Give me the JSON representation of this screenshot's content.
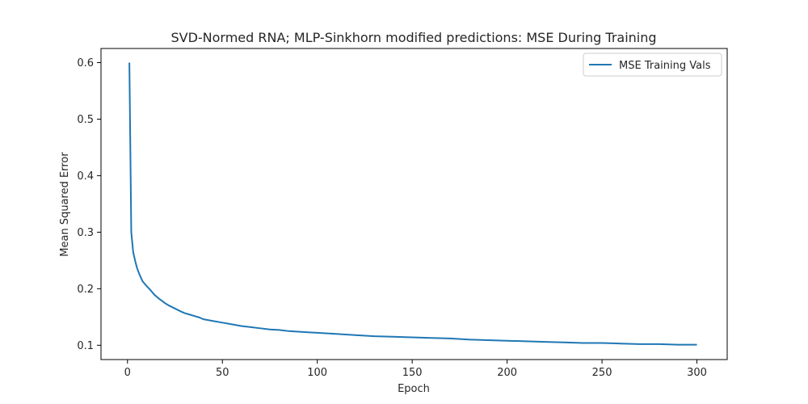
{
  "chart_data": {
    "type": "line",
    "title": "SVD-Normed RNA; MLP-Sinkhorn modified predictions: MSE During Training",
    "xlabel": "Epoch",
    "ylabel": "Mean Squared Error",
    "xlim": [
      -13.95,
      315.95
    ],
    "ylim": [
      0.0747,
      0.625
    ],
    "xticks": [
      0,
      50,
      100,
      150,
      200,
      250,
      300
    ],
    "yticks": [
      0.1,
      0.2,
      0.3,
      0.4,
      0.5,
      0.6
    ],
    "xtick_labels": [
      "0",
      "50",
      "100",
      "150",
      "200",
      "250",
      "300"
    ],
    "ytick_labels": [
      "0.1",
      "0.2",
      "0.3",
      "0.4",
      "0.5",
      "0.6"
    ],
    "grid": false,
    "legend_placement": "upper right",
    "series": [
      {
        "name": "MSE Training Vals",
        "color": "#1f77b4",
        "x": [
          1,
          2,
          3,
          4,
          5,
          6,
          7,
          8,
          9,
          10,
          12,
          14,
          16,
          18,
          20,
          22,
          25,
          28,
          30,
          33,
          35,
          38,
          40,
          45,
          50,
          55,
          60,
          65,
          70,
          75,
          80,
          85,
          90,
          95,
          100,
          110,
          120,
          130,
          140,
          150,
          160,
          170,
          180,
          190,
          200,
          210,
          220,
          230,
          240,
          250,
          260,
          270,
          280,
          290,
          300
        ],
        "y": [
          0.6,
          0.3,
          0.265,
          0.25,
          0.237,
          0.228,
          0.22,
          0.213,
          0.209,
          0.205,
          0.198,
          0.19,
          0.184,
          0.179,
          0.174,
          0.17,
          0.165,
          0.16,
          0.157,
          0.154,
          0.152,
          0.149,
          0.146,
          0.143,
          0.14,
          0.137,
          0.134,
          0.132,
          0.13,
          0.128,
          0.127,
          0.125,
          0.124,
          0.123,
          0.122,
          0.12,
          0.118,
          0.116,
          0.115,
          0.114,
          0.113,
          0.112,
          0.11,
          0.109,
          0.108,
          0.107,
          0.106,
          0.105,
          0.104,
          0.104,
          0.103,
          0.102,
          0.102,
          0.101,
          0.101
        ]
      }
    ]
  }
}
